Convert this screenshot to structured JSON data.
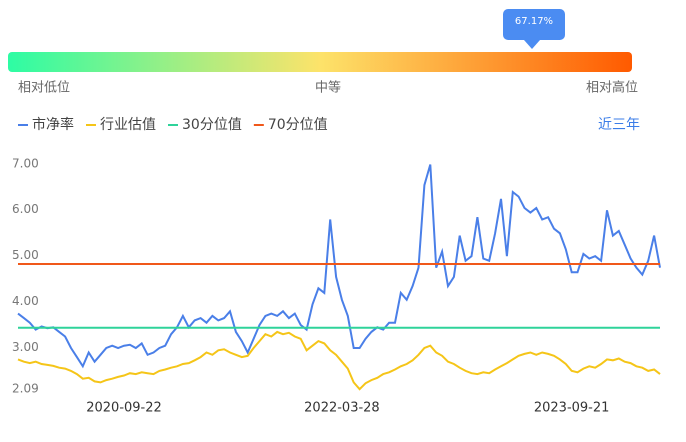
{
  "header": {
    "percentile_label": "67.17%",
    "scale_labels": [
      "相对低位",
      "中等",
      "相对高位"
    ],
    "period": "近三年"
  },
  "chart_data": {
    "type": "line",
    "categories": [
      null,
      null,
      null,
      null,
      null,
      null,
      null,
      null,
      null,
      null,
      null,
      null,
      null,
      null,
      null,
      null,
      null,
      null,
      "2020-09-22",
      null,
      null,
      null,
      null,
      null,
      null,
      null,
      null,
      null,
      null,
      null,
      null,
      null,
      null,
      null,
      null,
      null,
      null,
      null,
      null,
      null,
      null,
      null,
      null,
      null,
      null,
      null,
      null,
      null,
      null,
      null,
      null,
      null,
      null,
      null,
      null,
      "2022-03-28",
      null,
      null,
      null,
      null,
      null,
      null,
      null,
      null,
      null,
      null,
      null,
      null,
      null,
      null,
      null,
      null,
      null,
      null,
      null,
      null,
      null,
      null,
      null,
      null,
      null,
      null,
      null,
      null,
      null,
      null,
      null,
      null,
      null,
      null,
      null,
      null,
      null,
      null,
      "2023-09-21",
      null,
      null,
      null,
      null,
      null,
      null,
      null,
      null,
      null,
      null,
      null,
      null,
      null,
      null,
      null
    ],
    "series": [
      {
        "name": "市净率",
        "color": "#4a7fe8",
        "values": [
          3.8,
          3.7,
          3.6,
          3.45,
          3.52,
          3.48,
          3.5,
          3.4,
          3.3,
          3.05,
          2.85,
          2.65,
          2.95,
          2.75,
          2.9,
          3.05,
          3.1,
          3.05,
          3.1,
          3.12,
          3.05,
          3.15,
          2.9,
          2.95,
          3.05,
          3.1,
          3.35,
          3.5,
          3.75,
          3.5,
          3.65,
          3.7,
          3.6,
          3.75,
          3.65,
          3.7,
          3.85,
          3.4,
          3.2,
          2.95,
          3.25,
          3.55,
          3.75,
          3.8,
          3.75,
          3.85,
          3.7,
          3.8,
          3.55,
          3.45,
          4.0,
          4.35,
          4.25,
          5.85,
          4.6,
          4.1,
          3.75,
          3.05,
          3.05,
          3.25,
          3.4,
          3.5,
          3.45,
          3.6,
          3.6,
          4.25,
          4.1,
          4.4,
          4.8,
          6.6,
          7.05,
          4.8,
          5.15,
          4.4,
          4.6,
          5.5,
          4.95,
          5.05,
          5.9,
          5.0,
          4.95,
          5.55,
          6.3,
          5.05,
          6.45,
          6.35,
          6.1,
          6.0,
          6.1,
          5.85,
          5.9,
          5.65,
          5.55,
          5.2,
          4.7,
          4.7,
          5.1,
          5.0,
          5.05,
          4.95,
          6.05,
          5.5,
          5.6,
          5.3,
          5.0,
          4.8,
          4.65,
          4.95,
          5.5,
          4.8
        ]
      },
      {
        "name": "行业估值",
        "color": "#f5c518",
        "values": [
          2.8,
          2.75,
          2.72,
          2.75,
          2.7,
          2.68,
          2.66,
          2.62,
          2.6,
          2.55,
          2.48,
          2.38,
          2.4,
          2.32,
          2.3,
          2.35,
          2.38,
          2.42,
          2.45,
          2.5,
          2.48,
          2.52,
          2.5,
          2.48,
          2.55,
          2.58,
          2.62,
          2.65,
          2.7,
          2.72,
          2.78,
          2.85,
          2.95,
          2.9,
          3.0,
          3.02,
          2.95,
          2.9,
          2.85,
          2.88,
          3.05,
          3.2,
          3.35,
          3.3,
          3.4,
          3.35,
          3.38,
          3.3,
          3.25,
          3.0,
          3.1,
          3.2,
          3.15,
          3.0,
          2.9,
          2.75,
          2.6,
          2.3,
          2.15,
          2.28,
          2.35,
          2.4,
          2.48,
          2.52,
          2.58,
          2.65,
          2.7,
          2.78,
          2.9,
          3.05,
          3.1,
          2.95,
          2.88,
          2.75,
          2.7,
          2.62,
          2.55,
          2.5,
          2.48,
          2.52,
          2.5,
          2.58,
          2.65,
          2.72,
          2.8,
          2.88,
          2.92,
          2.95,
          2.9,
          2.95,
          2.92,
          2.88,
          2.8,
          2.7,
          2.55,
          2.52,
          2.6,
          2.65,
          2.62,
          2.7,
          2.8,
          2.78,
          2.82,
          2.75,
          2.72,
          2.65,
          2.62,
          2.55,
          2.58,
          2.48
        ]
      },
      {
        "name": "30分位值",
        "color": "#2fd39a",
        "value": 3.49
      },
      {
        "name": "70分位值",
        "color": "#f0581a",
        "value": 4.88
      }
    ],
    "ylim": [
      2.09,
      7.3
    ],
    "yticks": [
      {
        "value": 2.09,
        "label": "2.09"
      },
      {
        "value": 3,
        "label": "3.00"
      },
      {
        "value": 4,
        "label": "4.00"
      },
      {
        "value": 5,
        "label": "5.00"
      },
      {
        "value": 6,
        "label": "6.00"
      },
      {
        "value": 7,
        "label": "7.00"
      }
    ]
  }
}
